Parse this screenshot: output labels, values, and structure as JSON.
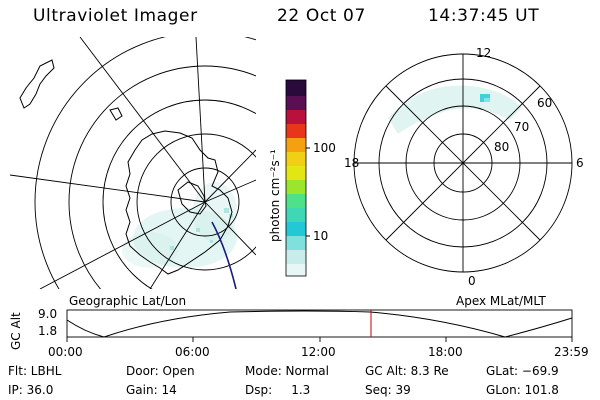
{
  "header": {
    "instrument": "Ultraviolet Imager",
    "date": "22 Oct 07",
    "time": "14:37:45 UT"
  },
  "left_map": {
    "label": "Geographic Lat/Lon"
  },
  "right_map": {
    "label": "Apex MLat/MLT",
    "lat_labels": [
      "60",
      "70",
      "80"
    ],
    "mlt_labels": {
      "top": "12",
      "left": "18",
      "right": "6",
      "bottom": "0"
    }
  },
  "colorbar": {
    "unit_label": "photon cm⁻²s⁻¹",
    "ticks": [
      "100",
      "10"
    ],
    "scale": "log",
    "colors": [
      "#e6f7f5",
      "#c8ecea",
      "#7fe0dc",
      "#22c8d6",
      "#4fe08a",
      "#9be52c",
      "#e4e614",
      "#f5b010",
      "#f08a0c",
      "#e8361a",
      "#d6102e",
      "#b8123c",
      "#7a0f58",
      "#2a0a3c"
    ]
  },
  "altitude_plot": {
    "ylabel": "GC Alt",
    "yticks": [
      "9.0",
      "1.8"
    ],
    "xticks": [
      "00:00",
      "06:00",
      "12:00",
      "18:00",
      "23:59"
    ],
    "marker_time_fraction": 0.61
  },
  "info": {
    "flt": "Flt: LBHL",
    "door": "Door: Open",
    "mode": "Mode: Normal",
    "gc_alt": "GC Alt: 8.3 Re",
    "glat": "GLat: −69.9",
    "ip": "IP: 36.0",
    "gain": "Gain: 14",
    "dsp": "Dsp:     1.3",
    "seq": "Seq: 39",
    "glon": "GLon: 101.8"
  }
}
